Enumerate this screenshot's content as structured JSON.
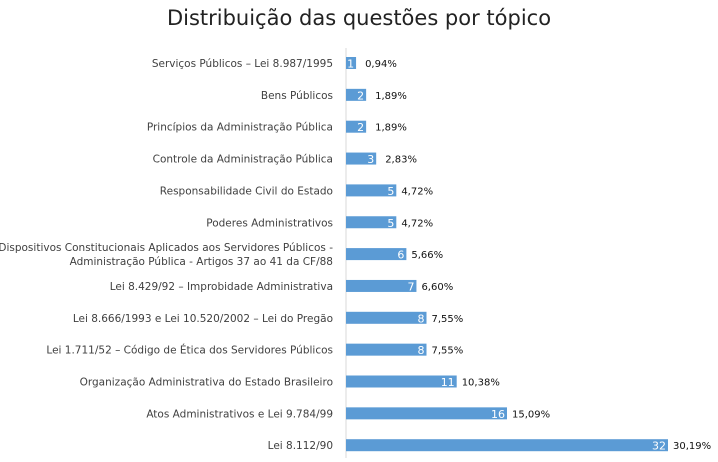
{
  "chart_data": {
    "type": "bar",
    "orientation": "horizontal",
    "title": "Distribuição das questões por tópico",
    "categories": [
      "Serviços Públicos – Lei 8.987/1995",
      "Bens Públicos",
      "Princípios da Administração Pública",
      "Controle da Administração Pública",
      "Responsabilidade Civil do Estado",
      "Poderes Administrativos",
      "Dispositivos Constitucionais Aplicados aos Servidores Públicos - Administração Pública - Artigos  37 ao 41 da CF/88",
      "Lei 8.429/92 – Improbidade Administrativa",
      "Lei 8.666/1993 e Lei 10.520/2002 – Lei do Pregão",
      "Lei 1.711/52 – Código de Ética dos Servidores Públicos",
      "Organização Administrativa do Estado Brasileiro",
      "Atos Administrativos e Lei 9.784/99",
      "Lei 8.112/90"
    ],
    "values": [
      1,
      2,
      2,
      3,
      5,
      5,
      6,
      7,
      8,
      8,
      11,
      16,
      32
    ],
    "percent_labels": [
      "0,94%",
      "1,89%",
      "1,89%",
      "2,83%",
      "4,72%",
      "4,72%",
      "5,66%",
      "6,60%",
      "7,55%",
      "7,55%",
      "10,38%",
      "15,09%",
      "30,19%"
    ],
    "xlim": [
      0,
      32
    ],
    "grid": false,
    "bar_color": "#5B9BD5",
    "axis_color": "#D9D9D9"
  }
}
